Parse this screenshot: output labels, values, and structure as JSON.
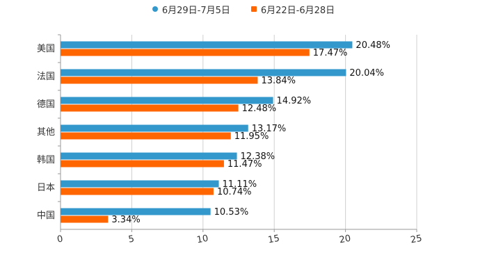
{
  "colors": {
    "series1": "#3399cc",
    "series2": "#ff6600",
    "grid": "#d0d0d0",
    "axis": "#999999",
    "text": "#333333"
  },
  "chart_data": {
    "type": "bar",
    "orientation": "horizontal",
    "title": "",
    "xlabel": "",
    "ylabel": "",
    "xlim": [
      0,
      25
    ],
    "x_ticks": [
      0,
      5,
      10,
      15,
      20,
      25
    ],
    "categories": [
      "美国",
      "法国",
      "德国",
      "其他",
      "韩国",
      "日本",
      "中国"
    ],
    "series": [
      {
        "name": "6月29日-7月5日",
        "values": [
          20.48,
          20.04,
          14.92,
          13.17,
          12.38,
          11.11,
          10.53
        ],
        "labels": [
          "20.48%",
          "20.04%",
          "14.92%",
          "13.17%",
          "12.38%",
          "11.11%",
          "10.53%"
        ]
      },
      {
        "name": "6月22日-6月28日",
        "values": [
          17.47,
          13.84,
          12.48,
          11.95,
          11.47,
          10.74,
          3.34
        ],
        "labels": [
          "17.47%",
          "13.84%",
          "12.48%",
          "11.95%",
          "11.47%",
          "10.74%",
          "3.34%"
        ]
      }
    ],
    "legend_position": "top-center"
  }
}
